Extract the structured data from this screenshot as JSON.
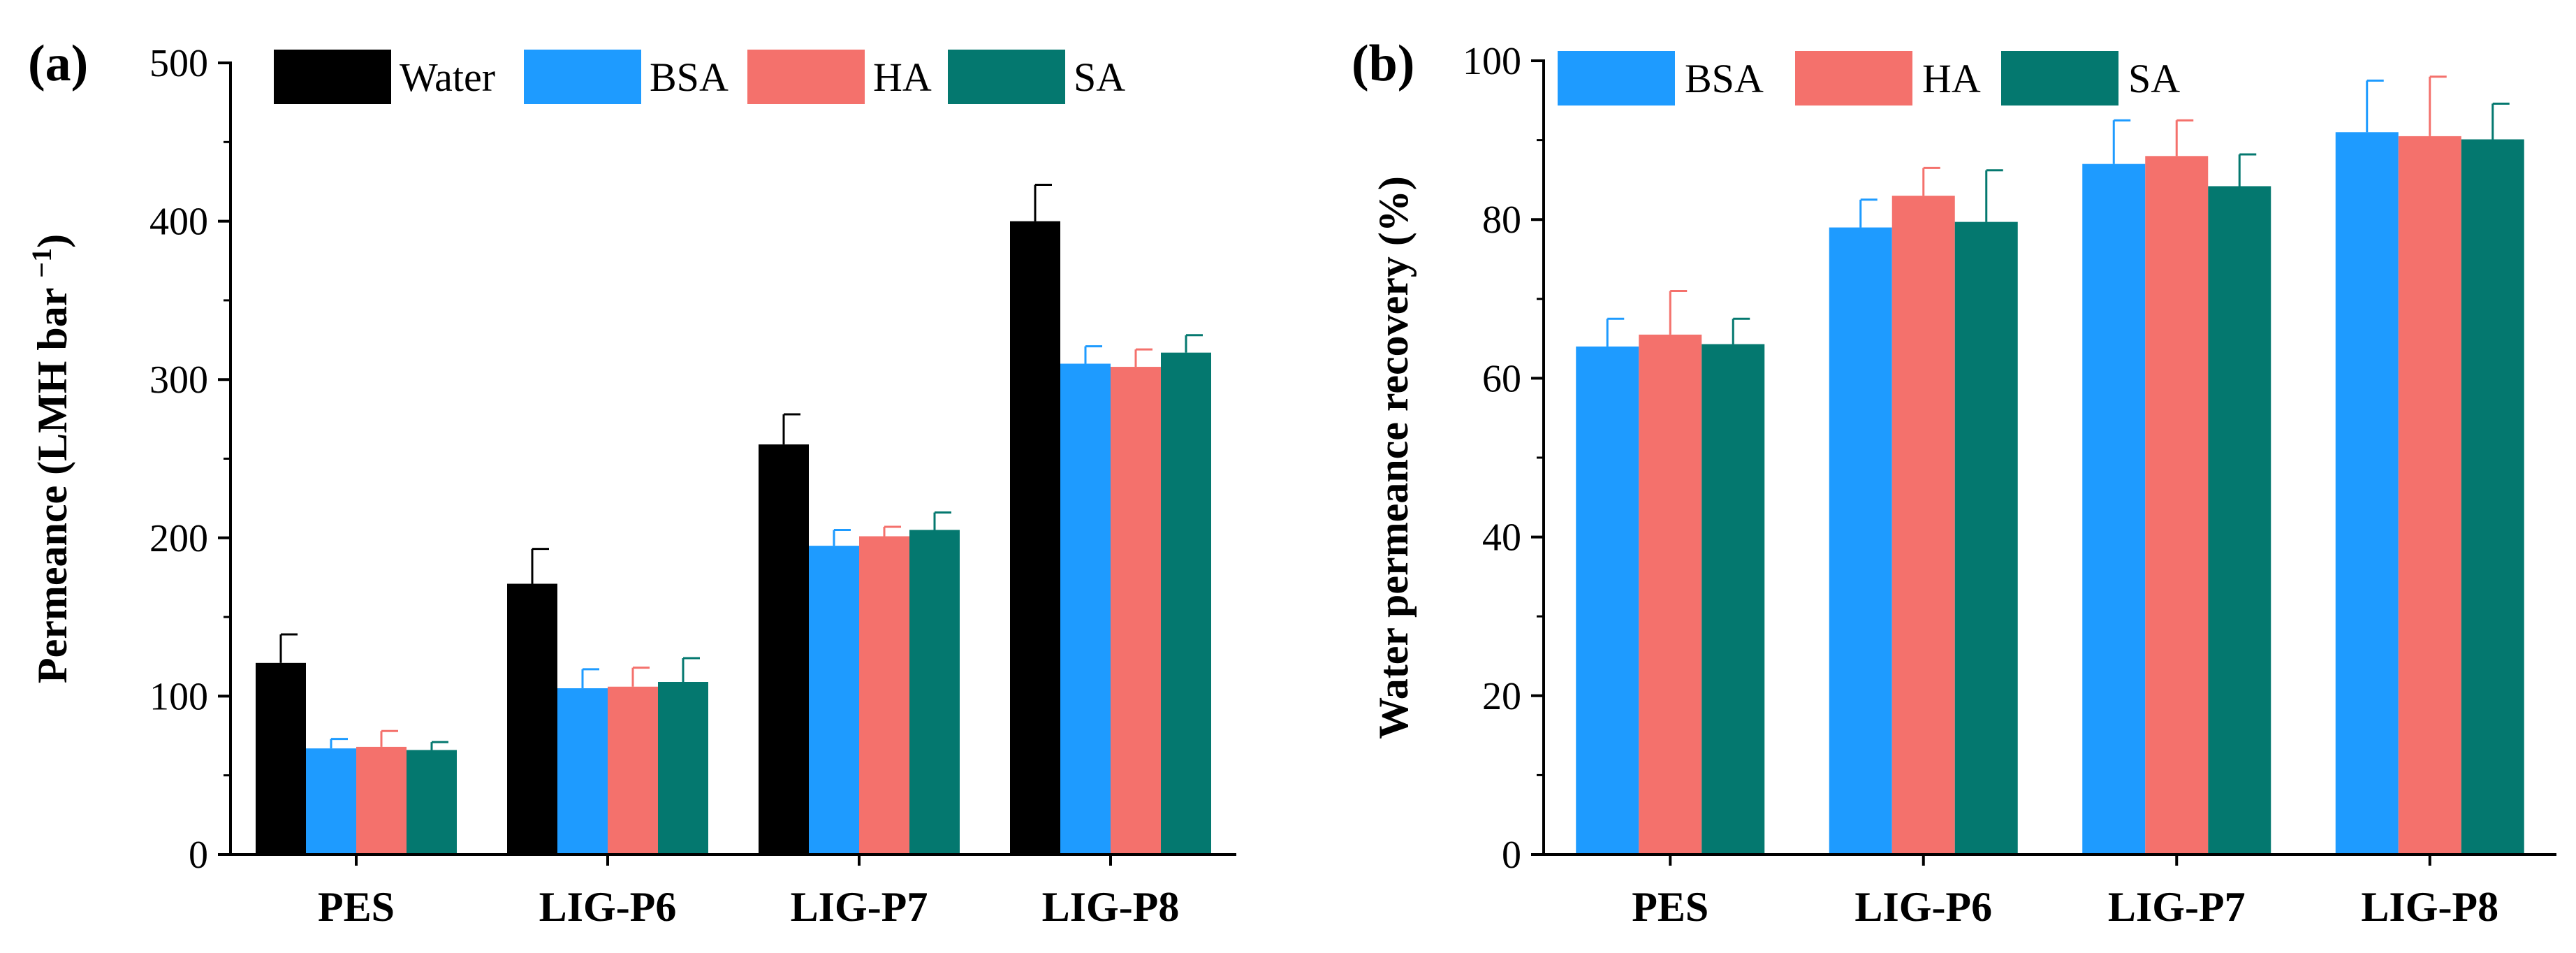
{
  "chart_data": [
    {
      "panel_label": "(a)",
      "type": "bar",
      "ylabel_main": "Permeance (LMH bar ",
      "ylabel_sup": "−1",
      "ylabel_tail": ")",
      "xlabel": "",
      "ylim": [
        0,
        500
      ],
      "yticks": [
        "0",
        "100",
        "200",
        "300",
        "400",
        "500"
      ],
      "categories": [
        "PES",
        "LIG-P6",
        "LIG-P7",
        "LIG-P8"
      ],
      "legend_position": "top",
      "series": [
        {
          "name": "Water",
          "color": "#000000",
          "values": [
            121,
            171,
            259,
            400
          ],
          "errors": [
            18,
            22,
            19,
            23
          ]
        },
        {
          "name": "BSA",
          "color": "#1E9BFF",
          "values": [
            67,
            105,
            195,
            310
          ],
          "errors": [
            6,
            12,
            10,
            11
          ]
        },
        {
          "name": "HA",
          "color": "#F4716C",
          "values": [
            68,
            106,
            201,
            308
          ],
          "errors": [
            10,
            12,
            6,
            11
          ]
        },
        {
          "name": "SA",
          "color": "#04786F",
          "values": [
            66,
            109,
            205,
            317
          ],
          "errors": [
            5,
            15,
            11,
            11
          ]
        }
      ]
    },
    {
      "panel_label": "(b)",
      "type": "bar",
      "ylabel_main": "Water permeance recovery (%)",
      "ylabel_sup": "",
      "ylabel_tail": "",
      "xlabel": "",
      "ylim": [
        0,
        100
      ],
      "yticks": [
        "0",
        "20",
        "40",
        "60",
        "80",
        "100"
      ],
      "categories": [
        "PES",
        "LIG-P6",
        "LIG-P7",
        "LIG-P8"
      ],
      "legend_position": "top",
      "series": [
        {
          "name": "BSA",
          "color": "#1E9BFF",
          "values": [
            64,
            79,
            87,
            91
          ],
          "errors": [
            3.5,
            3.5,
            5.5,
            6.5
          ]
        },
        {
          "name": "HA",
          "color": "#F4716C",
          "values": [
            65.5,
            83,
            88,
            90.5
          ],
          "errors": [
            5.5,
            3.5,
            4.5,
            7.5
          ]
        },
        {
          "name": "SA",
          "color": "#04786F",
          "values": [
            64.3,
            79.7,
            84.2,
            90.1
          ],
          "errors": [
            3.2,
            6.5,
            4,
            4.5
          ]
        }
      ]
    }
  ]
}
